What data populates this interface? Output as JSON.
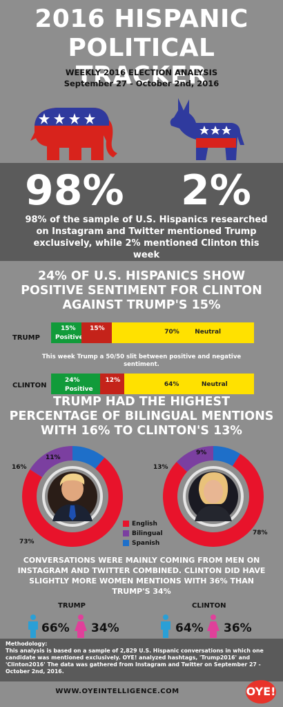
{
  "header": {
    "title_line1": "2016 HISPANIC",
    "title_line2": "POLITICAL TRACKER",
    "subtitle_line1": "WEEKLY 2016 ELECTION ANALYSIS",
    "subtitle_line2": "September 27 - October 2nd, 2016"
  },
  "colors": {
    "republican_red": "#d8231c",
    "democrat_blue": "#2f3a9e",
    "positive_green": "#119b3a",
    "negative_red": "#c4231a",
    "neutral_yellow": "#ffe100",
    "english_red": "#e8132b",
    "bilingual_purple": "#7b3fa0",
    "spanish_blue": "#1e6fc9",
    "male_blue": "#2a9fd6",
    "female_pink": "#e0409a"
  },
  "mentions": {
    "trump_pct": "98%",
    "clinton_pct": "2%",
    "description": "98% of the sample of U.S. Hispanics researched on Instagram and Twitter mentioned Trump exclusively, while 2% mentioned Clinton this week"
  },
  "sentiment": {
    "heading": "24% OF U.S. HISPANICS SHOW POSITIVE SENTIMENT FOR CLINTON AGAINST TRUMP'S 15%",
    "note": "This week Trump a 50/50 slit between positive and negative sentiment.",
    "trump": {
      "label": "TRUMP",
      "positive": 15,
      "negative": 15,
      "neutral": 70,
      "positive_text": "15%",
      "positive_word": "Positive",
      "negative_text": "15%",
      "neutral_text": "70%",
      "neutral_word": "Neutral"
    },
    "clinton": {
      "label": "CLINTON",
      "positive": 24,
      "negative": 12,
      "neutral": 64,
      "positive_text": "24%",
      "positive_word": "Positive",
      "negative_text": "12%",
      "neutral_text": "64%",
      "neutral_word": "Neutral"
    }
  },
  "language": {
    "heading": "TRUMP HAD THE HIGHEST PERCENTAGE OF BILINGUAL MENTIONS WITH 16% TO CLINTON'S 13%",
    "trump": {
      "english": 73,
      "bilingual": 16,
      "spanish": 11,
      "english_text": "73%",
      "bilingual_text": "16%",
      "spanish_text": "11%"
    },
    "clinton": {
      "english": 78,
      "bilingual": 13,
      "spanish": 9,
      "english_text": "78%",
      "bilingual_text": "13%",
      "spanish_text": "9%"
    },
    "legend": {
      "english": "English",
      "bilingual": "Bilingual",
      "spanish": "Spanish"
    }
  },
  "gender": {
    "heading": "CONVERSATIONS WERE MAINLY COMING FROM MEN ON INSTAGRAM AND TWITTER COMBINED. CLINTON DID HAVE SLIGHTLY MORE WOMEN MENTIONS WITH 36% THAN TRUMP'S 34%",
    "trump": {
      "label": "TRUMP",
      "male": "66%",
      "female": "34%"
    },
    "clinton": {
      "label": "CLINTON",
      "male": "64%",
      "female": "36%"
    }
  },
  "methodology": {
    "title": "Methodology:",
    "text": "This analysis is based on a sample of 2,829 U.S. Hispanic conversations in which one candidate was mentioned exclusively. OYE! analyzed hashtags, 'Trump2016' and 'Clinton2016' The data was gathered from Instagram and Twitter on September 27 - October 2nd, 2016."
  },
  "footer": {
    "url": "WWW.OYEINTELLIGENCE.COM",
    "logo": "OYE!"
  }
}
